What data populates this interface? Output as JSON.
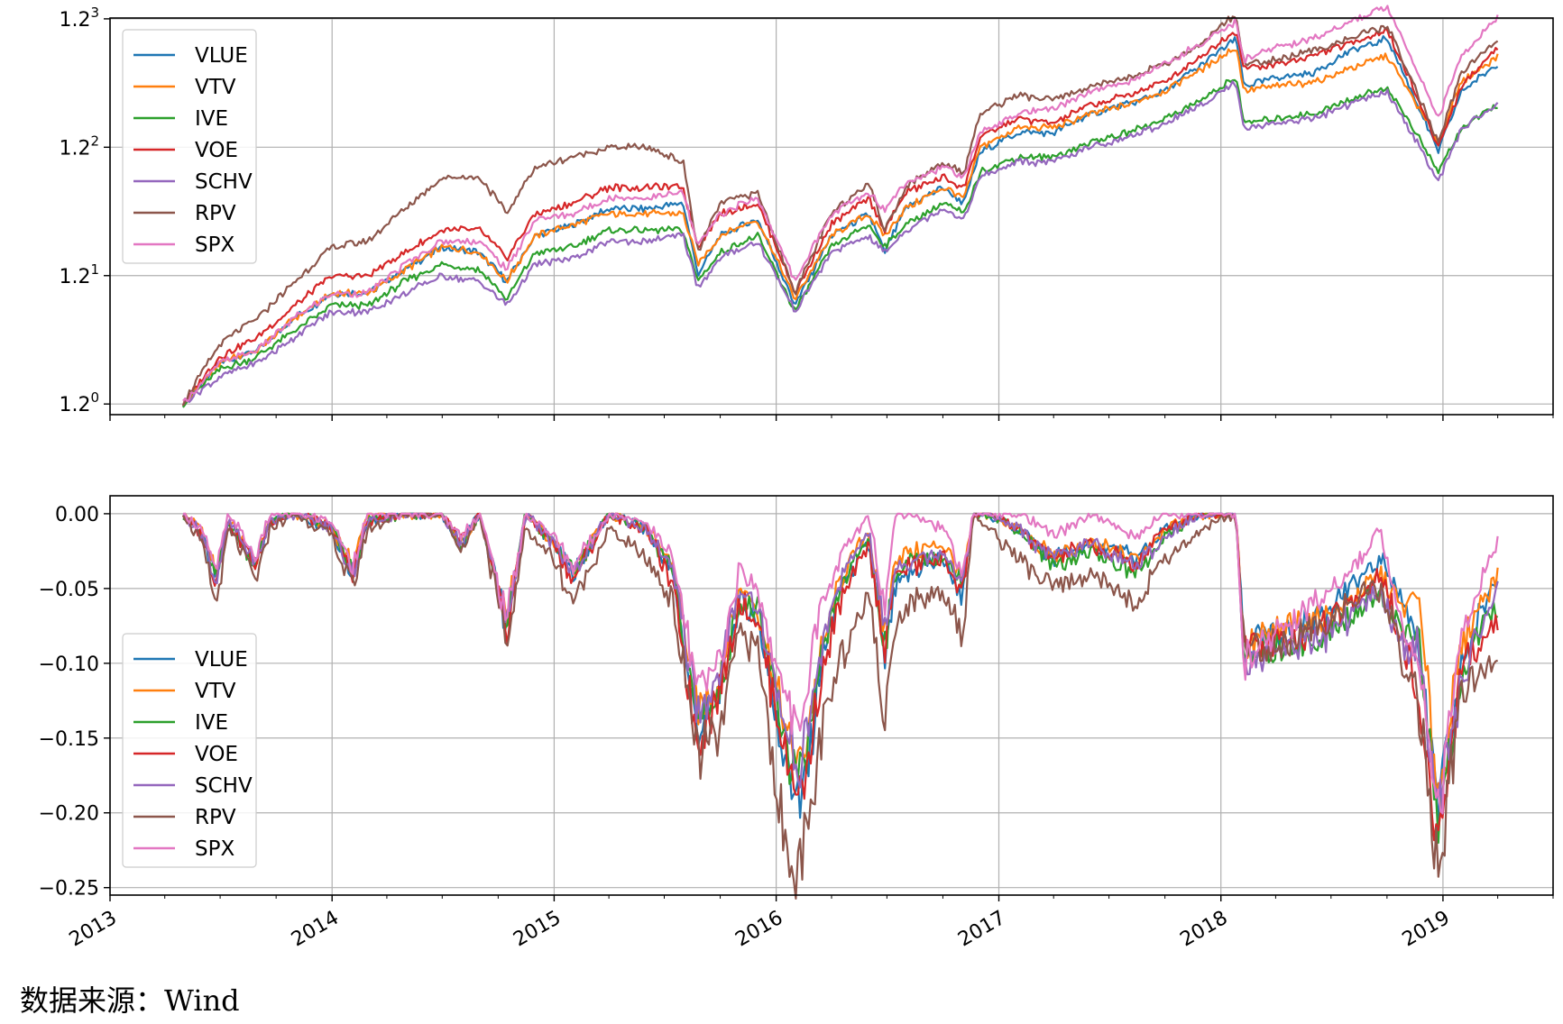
{
  "source_note": "数据来源：Wind",
  "series_meta": [
    {
      "name": "VLUE",
      "color": "#1f77b4"
    },
    {
      "name": "VTV",
      "color": "#ff7f0e"
    },
    {
      "name": "IVE",
      "color": "#2ca02c"
    },
    {
      "name": "VOE",
      "color": "#d62728"
    },
    {
      "name": "SCHV",
      "color": "#9467bd"
    },
    {
      "name": "RPV",
      "color": "#8c564b"
    },
    {
      "name": "SPX",
      "color": "#e377c2"
    }
  ],
  "chart_data": [
    {
      "type": "line",
      "y_scale": "log (base 1.2)",
      "xlim": [
        "2013-01-01",
        "2019-07-01"
      ],
      "ylim": [
        0.985,
        1.73
      ],
      "x_ticks": [
        "2013",
        "2014",
        "2015",
        "2016",
        "2017",
        "2018",
        "2019"
      ],
      "y_ticks": [
        {
          "value": 1.0,
          "base": "1.2",
          "exp": "0"
        },
        {
          "value": 1.2,
          "base": "1.2",
          "exp": "1"
        },
        {
          "value": 1.44,
          "base": "1.2",
          "exp": "2"
        },
        {
          "value": 1.728,
          "base": "1.2",
          "exp": "3"
        }
      ],
      "grid": true,
      "legend": "top-left",
      "dates": [
        "2013-05-01",
        "2013-07-01",
        "2013-09-01",
        "2013-11-01",
        "2014-01-01",
        "2014-03-01",
        "2014-05-01",
        "2014-07-01",
        "2014-09-01",
        "2014-10-15",
        "2014-12-01",
        "2015-02-01",
        "2015-04-01",
        "2015-06-01",
        "2015-08-01",
        "2015-08-25",
        "2015-10-01",
        "2015-12-01",
        "2016-02-01",
        "2016-04-01",
        "2016-06-01",
        "2016-06-27",
        "2016-08-01",
        "2016-10-01",
        "2016-11-05",
        "2016-12-01",
        "2017-02-01",
        "2017-04-01",
        "2017-06-01",
        "2017-08-01",
        "2017-10-01",
        "2017-12-01",
        "2018-01-26",
        "2018-02-08",
        "2018-04-01",
        "2018-06-01",
        "2018-08-01",
        "2018-10-01",
        "2018-12-24",
        "2019-02-01",
        "2019-04-01"
      ],
      "series": [
        {
          "name": "VLUE",
          "values": [
            1.0,
            1.06,
            1.08,
            1.13,
            1.17,
            1.17,
            1.21,
            1.25,
            1.24,
            1.19,
            1.27,
            1.29,
            1.32,
            1.32,
            1.33,
            1.2,
            1.27,
            1.3,
            1.15,
            1.27,
            1.31,
            1.24,
            1.32,
            1.36,
            1.33,
            1.43,
            1.47,
            1.47,
            1.51,
            1.53,
            1.56,
            1.62,
            1.68,
            1.57,
            1.59,
            1.6,
            1.65,
            1.68,
            1.43,
            1.56,
            1.62
          ]
        },
        {
          "name": "VTV",
          "values": [
            1.0,
            1.06,
            1.08,
            1.13,
            1.17,
            1.17,
            1.21,
            1.25,
            1.24,
            1.19,
            1.27,
            1.29,
            1.31,
            1.31,
            1.31,
            1.22,
            1.27,
            1.3,
            1.16,
            1.27,
            1.31,
            1.27,
            1.32,
            1.36,
            1.34,
            1.44,
            1.48,
            1.48,
            1.51,
            1.53,
            1.56,
            1.61,
            1.66,
            1.56,
            1.57,
            1.58,
            1.61,
            1.64,
            1.45,
            1.58,
            1.64
          ]
        },
        {
          "name": "IVE",
          "values": [
            1.0,
            1.05,
            1.07,
            1.11,
            1.15,
            1.15,
            1.19,
            1.22,
            1.21,
            1.16,
            1.24,
            1.25,
            1.28,
            1.28,
            1.28,
            1.19,
            1.24,
            1.27,
            1.14,
            1.25,
            1.29,
            1.25,
            1.29,
            1.33,
            1.31,
            1.39,
            1.42,
            1.42,
            1.45,
            1.47,
            1.5,
            1.54,
            1.59,
            1.49,
            1.5,
            1.51,
            1.54,
            1.57,
            1.39,
            1.48,
            1.53
          ]
        },
        {
          "name": "VOE",
          "values": [
            1.0,
            1.07,
            1.1,
            1.15,
            1.2,
            1.2,
            1.24,
            1.28,
            1.28,
            1.23,
            1.31,
            1.33,
            1.36,
            1.36,
            1.36,
            1.25,
            1.31,
            1.33,
            1.17,
            1.29,
            1.34,
            1.28,
            1.35,
            1.38,
            1.36,
            1.46,
            1.5,
            1.49,
            1.53,
            1.55,
            1.58,
            1.64,
            1.7,
            1.61,
            1.62,
            1.64,
            1.67,
            1.7,
            1.44,
            1.57,
            1.66
          ]
        },
        {
          "name": "SCHV",
          "values": [
            1.0,
            1.04,
            1.06,
            1.1,
            1.14,
            1.14,
            1.17,
            1.2,
            1.19,
            1.15,
            1.22,
            1.23,
            1.26,
            1.26,
            1.27,
            1.18,
            1.23,
            1.26,
            1.14,
            1.24,
            1.27,
            1.24,
            1.28,
            1.32,
            1.3,
            1.38,
            1.41,
            1.41,
            1.44,
            1.46,
            1.49,
            1.53,
            1.58,
            1.48,
            1.49,
            1.5,
            1.53,
            1.56,
            1.37,
            1.48,
            1.53
          ]
        },
        {
          "name": "RPV",
          "values": [
            1.0,
            1.09,
            1.13,
            1.19,
            1.25,
            1.26,
            1.32,
            1.38,
            1.38,
            1.31,
            1.4,
            1.42,
            1.44,
            1.44,
            1.41,
            1.24,
            1.33,
            1.35,
            1.17,
            1.31,
            1.37,
            1.28,
            1.36,
            1.41,
            1.39,
            1.51,
            1.55,
            1.54,
            1.57,
            1.59,
            1.62,
            1.67,
            1.74,
            1.62,
            1.63,
            1.65,
            1.68,
            1.71,
            1.45,
            1.6,
            1.68
          ]
        },
        {
          "name": "SPX",
          "values": [
            1.0,
            1.06,
            1.08,
            1.13,
            1.17,
            1.17,
            1.22,
            1.26,
            1.26,
            1.21,
            1.3,
            1.31,
            1.34,
            1.34,
            1.35,
            1.25,
            1.31,
            1.34,
            1.19,
            1.31,
            1.35,
            1.32,
            1.37,
            1.4,
            1.38,
            1.47,
            1.51,
            1.52,
            1.56,
            1.58,
            1.62,
            1.67,
            1.72,
            1.63,
            1.66,
            1.68,
            1.72,
            1.76,
            1.5,
            1.64,
            1.73
          ]
        }
      ]
    },
    {
      "type": "line",
      "xlim": [
        "2013-01-01",
        "2019-07-01"
      ],
      "ylim": [
        -0.255,
        0.012
      ],
      "x_ticks": [
        "2013",
        "2014",
        "2015",
        "2016",
        "2017",
        "2018",
        "2019"
      ],
      "y_ticks": [
        "0.00",
        "−0.05",
        "−0.10",
        "−0.15",
        "−0.20",
        "−0.25"
      ],
      "y_tick_values": [
        0,
        -0.05,
        -0.1,
        -0.15,
        -0.2,
        -0.25
      ],
      "grid": true,
      "legend": "lower-left",
      "dates": [
        "2013-05-01",
        "2013-06-01",
        "2013-06-24",
        "2013-07-15",
        "2013-08-30",
        "2013-09-20",
        "2013-11-01",
        "2014-01-01",
        "2014-02-03",
        "2014-03-01",
        "2014-05-01",
        "2014-07-01",
        "2014-08-01",
        "2014-09-01",
        "2014-10-15",
        "2014-11-15",
        "2015-01-01",
        "2015-02-01",
        "2015-04-01",
        "2015-06-01",
        "2015-07-15",
        "2015-08-25",
        "2015-09-29",
        "2015-11-01",
        "2015-12-01",
        "2016-01-20",
        "2016-02-11",
        "2016-03-15",
        "2016-04-15",
        "2016-06-01",
        "2016-06-27",
        "2016-07-15",
        "2016-08-15",
        "2016-10-01",
        "2016-11-03",
        "2016-11-20",
        "2016-12-15",
        "2017-02-01",
        "2017-04-01",
        "2017-06-01",
        "2017-08-15",
        "2017-10-01",
        "2017-12-01",
        "2018-01-26",
        "2018-02-08",
        "2018-04-01",
        "2018-06-01",
        "2018-08-01",
        "2018-09-20",
        "2018-10-29",
        "2018-11-20",
        "2018-12-24",
        "2019-02-01",
        "2019-03-01",
        "2019-04-01"
      ],
      "series": [
        {
          "name": "VLUE",
          "values": [
            0,
            -0.015,
            -0.045,
            -0.005,
            -0.035,
            -0.005,
            0,
            -0.01,
            -0.04,
            -0.005,
            0,
            0,
            -0.02,
            0,
            -0.075,
            0,
            -0.02,
            -0.04,
            0,
            -0.01,
            -0.04,
            -0.15,
            -0.12,
            -0.06,
            -0.07,
            -0.17,
            -0.2,
            -0.1,
            -0.05,
            -0.02,
            -0.1,
            -0.05,
            -0.04,
            -0.03,
            -0.055,
            0,
            0,
            -0.01,
            -0.03,
            -0.02,
            -0.03,
            -0.01,
            0,
            0,
            -0.09,
            -0.08,
            -0.07,
            -0.05,
            -0.03,
            -0.06,
            -0.08,
            -0.2,
            -0.1,
            -0.07,
            -0.04
          ]
        },
        {
          "name": "VTV",
          "values": [
            0,
            -0.01,
            -0.04,
            -0.005,
            -0.03,
            -0.005,
            0,
            -0.01,
            -0.035,
            0,
            0,
            0,
            -0.02,
            0,
            -0.07,
            0,
            -0.02,
            -0.04,
            0,
            -0.01,
            -0.035,
            -0.13,
            -0.11,
            -0.05,
            -0.06,
            -0.15,
            -0.17,
            -0.09,
            -0.045,
            -0.01,
            -0.08,
            -0.03,
            -0.025,
            -0.02,
            -0.045,
            0,
            0,
            -0.01,
            -0.03,
            -0.02,
            -0.03,
            -0.01,
            0,
            0,
            -0.09,
            -0.08,
            -0.07,
            -0.06,
            -0.04,
            -0.065,
            -0.05,
            -0.19,
            -0.09,
            -0.06,
            -0.04
          ]
        },
        {
          "name": "IVE",
          "values": [
            0,
            -0.015,
            -0.045,
            -0.005,
            -0.035,
            -0.005,
            0,
            -0.01,
            -0.04,
            -0.005,
            0,
            0,
            -0.02,
            0,
            -0.075,
            0,
            -0.02,
            -0.04,
            0,
            -0.01,
            -0.04,
            -0.14,
            -0.12,
            -0.06,
            -0.065,
            -0.16,
            -0.18,
            -0.1,
            -0.05,
            -0.015,
            -0.09,
            -0.04,
            -0.03,
            -0.03,
            -0.05,
            0,
            0,
            -0.01,
            -0.035,
            -0.025,
            -0.04,
            -0.015,
            0,
            0,
            -0.1,
            -0.09,
            -0.085,
            -0.07,
            -0.05,
            -0.08,
            -0.08,
            -0.21,
            -0.11,
            -0.08,
            -0.06
          ]
        },
        {
          "name": "VOE",
          "values": [
            0,
            -0.015,
            -0.045,
            -0.005,
            -0.035,
            -0.005,
            0,
            -0.01,
            -0.04,
            -0.005,
            0,
            0,
            -0.02,
            0,
            -0.08,
            0,
            -0.02,
            -0.045,
            0,
            -0.01,
            -0.05,
            -0.15,
            -0.12,
            -0.06,
            -0.07,
            -0.17,
            -0.19,
            -0.11,
            -0.06,
            -0.02,
            -0.09,
            -0.04,
            -0.035,
            -0.03,
            -0.05,
            0,
            0,
            -0.01,
            -0.03,
            -0.02,
            -0.035,
            -0.01,
            0,
            0,
            -0.09,
            -0.085,
            -0.08,
            -0.06,
            -0.04,
            -0.09,
            -0.12,
            -0.22,
            -0.1,
            -0.09,
            -0.07
          ]
        },
        {
          "name": "SCHV",
          "values": [
            0,
            -0.015,
            -0.045,
            -0.005,
            -0.035,
            -0.005,
            0,
            -0.01,
            -0.04,
            -0.005,
            0,
            0,
            -0.02,
            0,
            -0.075,
            0,
            -0.02,
            -0.04,
            0,
            -0.01,
            -0.04,
            -0.13,
            -0.11,
            -0.05,
            -0.06,
            -0.15,
            -0.17,
            -0.09,
            -0.045,
            -0.01,
            -0.08,
            -0.035,
            -0.03,
            -0.025,
            -0.045,
            0,
            0,
            -0.01,
            -0.03,
            -0.02,
            -0.035,
            -0.015,
            0,
            0,
            -0.1,
            -0.09,
            -0.085,
            -0.07,
            -0.05,
            -0.09,
            -0.09,
            -0.2,
            -0.11,
            -0.08,
            -0.05
          ]
        },
        {
          "name": "RPV",
          "values": [
            0,
            -0.02,
            -0.06,
            -0.01,
            -0.045,
            -0.01,
            0,
            -0.015,
            -0.05,
            -0.01,
            0,
            0,
            -0.025,
            0,
            -0.09,
            -0.01,
            -0.03,
            -0.06,
            -0.01,
            -0.03,
            -0.06,
            -0.16,
            -0.15,
            -0.08,
            -0.09,
            -0.23,
            -0.24,
            -0.15,
            -0.1,
            -0.05,
            -0.14,
            -0.07,
            -0.06,
            -0.05,
            -0.08,
            0,
            -0.01,
            -0.03,
            -0.05,
            -0.04,
            -0.06,
            -0.03,
            -0.01,
            0,
            -0.09,
            -0.09,
            -0.08,
            -0.06,
            -0.05,
            -0.1,
            -0.12,
            -0.24,
            -0.12,
            -0.11,
            -0.09
          ]
        },
        {
          "name": "SPX",
          "values": [
            0,
            -0.01,
            -0.04,
            0,
            -0.03,
            0,
            0,
            -0.005,
            -0.035,
            0,
            0,
            0,
            -0.015,
            0,
            -0.07,
            0,
            -0.015,
            -0.035,
            0,
            -0.005,
            -0.03,
            -0.12,
            -0.1,
            -0.04,
            -0.05,
            -0.13,
            -0.14,
            -0.06,
            -0.03,
            0,
            -0.06,
            0,
            0,
            -0.01,
            -0.04,
            0,
            0,
            0,
            -0.015,
            0,
            -0.015,
            0,
            0,
            0,
            -0.1,
            -0.08,
            -0.06,
            -0.04,
            -0.01,
            -0.08,
            -0.09,
            -0.2,
            -0.08,
            -0.05,
            -0.02
          ]
        }
      ]
    }
  ]
}
